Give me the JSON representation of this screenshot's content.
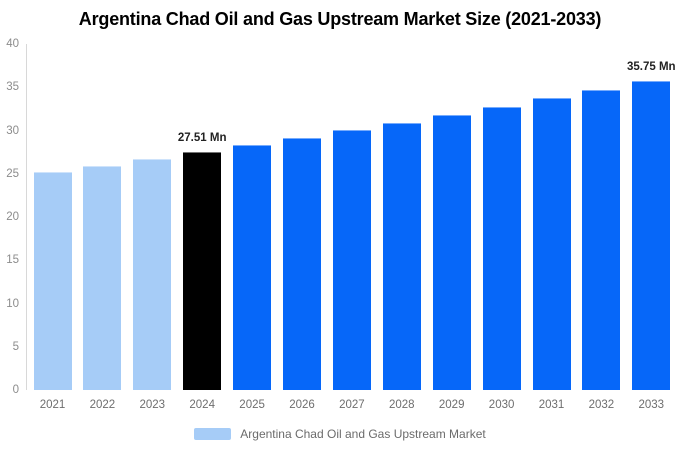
{
  "page": {
    "background": "#ffffff"
  },
  "chart_data": {
    "type": "bar",
    "title": "Argentina Chad Oil and Gas Upstream Market Size (2021-2033)",
    "categories": [
      "2021",
      "2022",
      "2023",
      "2024",
      "2025",
      "2026",
      "2027",
      "2028",
      "2029",
      "2030",
      "2031",
      "2032",
      "2033"
    ],
    "values": [
      25.21,
      25.95,
      26.72,
      27.51,
      28.32,
      29.16,
      30.02,
      30.9,
      31.81,
      32.75,
      33.72,
      34.71,
      35.75
    ],
    "unit": "Mn",
    "bar_color_keys": [
      "historical",
      "historical",
      "historical",
      "base_year",
      "forecast",
      "forecast",
      "forecast",
      "forecast",
      "forecast",
      "forecast",
      "forecast",
      "forecast",
      "forecast"
    ],
    "colors": {
      "historical": "#a6ccf7",
      "base_year": "#000000",
      "forecast": "#0667f9"
    },
    "data_labels": [
      {
        "category": "2024",
        "text": "27.51 Mn"
      },
      {
        "category": "2033",
        "text": "35.75 Mn"
      }
    ],
    "xlabel": "",
    "ylabel": "",
    "ylim": [
      0,
      40
    ],
    "y_ticks": [
      0,
      5,
      10,
      15,
      20,
      25,
      30,
      35,
      40
    ],
    "grid": false,
    "legend_position": "bottom"
  },
  "legend": {
    "label": "Argentina Chad Oil and Gas Upstream Market",
    "swatch_color": "#a6ccf7"
  },
  "axis": {
    "line_color": "#d8d8d8",
    "tick_text_color": "#8c8c8c",
    "x_label_color": "#6e6e6e"
  }
}
